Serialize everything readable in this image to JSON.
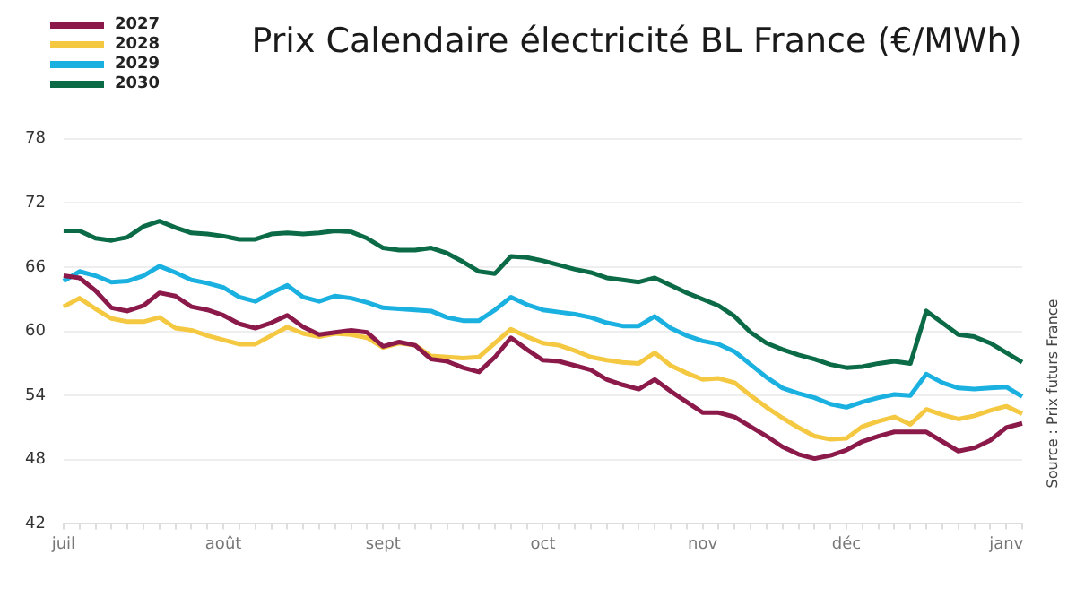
{
  "chart_data": {
    "type": "line",
    "title": "Prix Calendaire électricité BL France (€/MWh)",
    "categories": [
      "juil",
      null,
      null,
      null,
      null,
      null,
      null,
      null,
      null,
      null,
      "août",
      null,
      null,
      null,
      null,
      null,
      null,
      null,
      null,
      null,
      "sept",
      null,
      null,
      null,
      null,
      null,
      null,
      null,
      null,
      null,
      "oct",
      null,
      null,
      null,
      null,
      null,
      null,
      null,
      null,
      null,
      "nov",
      null,
      null,
      null,
      null,
      null,
      null,
      null,
      null,
      "déc",
      null,
      null,
      null,
      null,
      null,
      null,
      null,
      null,
      null,
      "janv",
      null
    ],
    "series": [
      {
        "name": "2027",
        "color": "#8b1a4a",
        "values": [
          65.2,
          65.0,
          63.8,
          62.2,
          61.9,
          62.4,
          63.6,
          63.3,
          62.3,
          62.0,
          61.5,
          60.7,
          60.3,
          60.8,
          61.5,
          60.4,
          59.7,
          59.9,
          60.1,
          59.9,
          58.6,
          59.0,
          58.7,
          57.4,
          57.2,
          56.6,
          56.2,
          57.6,
          59.4,
          58.3,
          57.3,
          57.2,
          56.8,
          56.4,
          55.5,
          55.0,
          54.6,
          55.5,
          54.4,
          53.4,
          52.4,
          52.4,
          52.0,
          51.1,
          50.2,
          49.2,
          48.5,
          48.1,
          48.4,
          48.9,
          49.7,
          50.2,
          50.6,
          50.6,
          50.6,
          49.7,
          48.8,
          49.1,
          49.8,
          51.0,
          51.4
        ]
      },
      {
        "name": "2028",
        "color": "#f5c842",
        "values": [
          62.3,
          63.1,
          62.1,
          61.2,
          60.9,
          60.9,
          61.3,
          60.3,
          60.1,
          59.6,
          59.2,
          58.8,
          58.8,
          59.6,
          60.4,
          59.8,
          59.5,
          59.8,
          59.7,
          59.4,
          58.5,
          58.9,
          58.7,
          57.7,
          57.6,
          57.5,
          57.6,
          58.9,
          60.2,
          59.5,
          58.9,
          58.7,
          58.2,
          57.6,
          57.3,
          57.1,
          57.0,
          58.0,
          56.8,
          56.1,
          55.5,
          55.6,
          55.2,
          54.0,
          52.9,
          51.9,
          51.0,
          50.2,
          49.9,
          50.0,
          51.1,
          51.6,
          52.0,
          51.3,
          52.7,
          52.2,
          51.8,
          52.1,
          52.6,
          53.0,
          52.3
        ]
      },
      {
        "name": "2029",
        "color": "#1ab0e0",
        "values": [
          64.7,
          65.6,
          65.2,
          64.6,
          64.7,
          65.2,
          66.1,
          65.5,
          64.8,
          64.5,
          64.1,
          63.2,
          62.8,
          63.6,
          64.3,
          63.2,
          62.8,
          63.3,
          63.1,
          62.7,
          62.2,
          62.1,
          62.0,
          61.9,
          61.3,
          61.0,
          61.0,
          62.0,
          63.2,
          62.5,
          62.0,
          61.8,
          61.6,
          61.3,
          60.8,
          60.5,
          60.5,
          61.4,
          60.3,
          59.6,
          59.1,
          58.8,
          58.1,
          56.9,
          55.7,
          54.7,
          54.2,
          53.8,
          53.2,
          52.9,
          53.4,
          53.8,
          54.1,
          54.0,
          56.0,
          55.2,
          54.7,
          54.6,
          54.7,
          54.8,
          53.9
        ]
      },
      {
        "name": "2030",
        "color": "#0b6b47",
        "values": [
          69.4,
          69.4,
          68.7,
          68.5,
          68.8,
          69.8,
          70.3,
          69.7,
          69.2,
          69.1,
          68.9,
          68.6,
          68.6,
          69.1,
          69.2,
          69.1,
          69.2,
          69.4,
          69.3,
          68.7,
          67.8,
          67.6,
          67.6,
          67.8,
          67.3,
          66.5,
          65.6,
          65.4,
          67.0,
          66.9,
          66.6,
          66.2,
          65.8,
          65.5,
          65.0,
          64.8,
          64.6,
          65.0,
          64.3,
          63.6,
          63.0,
          62.4,
          61.4,
          59.9,
          58.9,
          58.3,
          57.8,
          57.4,
          56.9,
          56.6,
          56.7,
          57.0,
          57.2,
          57.0,
          61.9,
          60.8,
          59.7,
          59.5,
          58.9,
          58.0,
          57.1
        ]
      }
    ],
    "ylim": [
      42,
      78
    ],
    "yticks": [
      42,
      48,
      54,
      60,
      66,
      72,
      78
    ],
    "grid": "y",
    "legend": "top left",
    "marker": "none",
    "line_style": "solid",
    "annotations": [
      "Source : Prix futurs France"
    ]
  }
}
